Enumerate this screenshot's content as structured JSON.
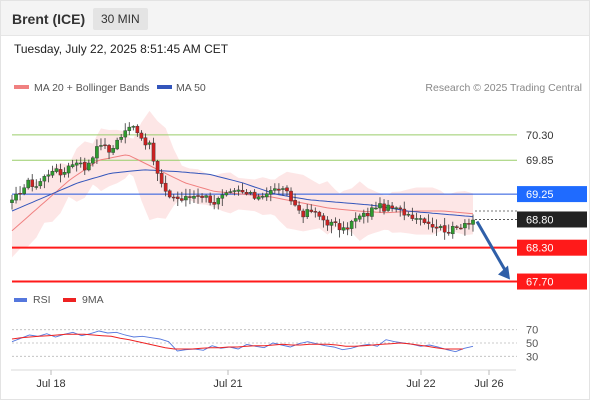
{
  "header": {
    "instrument": "Brent (ICE)",
    "timeframe": "30 MIN"
  },
  "datetime": "Tuesday, July 22, 2025 8:51:45 AM CET",
  "legend": {
    "ma20": "MA 20 + Bollinger Bands",
    "ma50": "MA 50",
    "rsi": "RSI",
    "rsi_ma": "9MA"
  },
  "credit": "Research © 2025 Trading Central",
  "colors": {
    "ma20": "#f08080",
    "bollinger_fill": "#fde3e3",
    "ma50": "#3355bb",
    "pivot_line": "#2255dd",
    "pivot_label": "#1f6bff",
    "resistance": "#9acd6a",
    "support": "#ff1a1a",
    "current_label": "#222222",
    "candle_up": "#2e9b2e",
    "candle_down": "#cc2222",
    "rsi": "#5577dd",
    "rsi_ma": "#ee2222",
    "arrow": "#2f5fa8"
  },
  "chart_data": [
    {
      "type": "candlestick",
      "title": "Brent (ICE)",
      "ylim": [
        67.55,
        70.9
      ],
      "x_ticks": [
        "Jul 18",
        "Jul 21",
        "Jul 22",
        "Jul 26"
      ],
      "levels": [
        {
          "value": 70.3,
          "label": "70.30",
          "kind": "resistance"
        },
        {
          "value": 69.85,
          "label": "69.85",
          "kind": "resistance"
        },
        {
          "value": 69.25,
          "label": "69.25",
          "kind": "pivot"
        },
        {
          "value": 68.8,
          "label": "68.80",
          "kind": "current"
        },
        {
          "value": 68.3,
          "label": "68.30",
          "kind": "support"
        },
        {
          "value": 67.7,
          "label": "67.70",
          "kind": "support"
        }
      ],
      "price_anchors": [
        69.1,
        69.3,
        69.45,
        69.4,
        69.55,
        69.7,
        69.6,
        69.75,
        69.85,
        69.7,
        69.95,
        70.15,
        70.0,
        70.2,
        70.35,
        70.5,
        70.25,
        70.1,
        69.6,
        69.25,
        69.2,
        69.15,
        69.2,
        69.25,
        69.2,
        69.1,
        69.2,
        69.25,
        69.3,
        69.25,
        69.2,
        69.25,
        69.3,
        69.35,
        69.25,
        69.05,
        68.9,
        68.95,
        68.85,
        68.75,
        68.7,
        68.6,
        68.75,
        68.85,
        68.9,
        69.05,
        69.0,
        69.0,
        68.95,
        68.9,
        68.85,
        68.8,
        68.7,
        68.65,
        68.6,
        68.65,
        68.75,
        68.8
      ],
      "ma20_anchors": [
        68.6,
        69.05,
        69.5,
        69.85,
        69.95,
        69.7,
        69.45,
        69.3,
        69.25,
        69.2,
        69.1,
        69.0,
        68.95,
        68.92,
        68.95,
        68.95,
        68.9
      ],
      "ma50_anchors": [
        68.95,
        69.2,
        69.45,
        69.62,
        69.68,
        69.65,
        69.6,
        69.45,
        69.25,
        69.15,
        69.1,
        69.05,
        68.95,
        68.9,
        68.85
      ],
      "projection": {
        "from": 68.8,
        "to": 67.7
      }
    },
    {
      "type": "line",
      "title": "RSI",
      "ylim": [
        20,
        80
      ],
      "y_ticks": [
        70,
        50,
        30
      ],
      "series": [
        {
          "name": "RSI",
          "values": [
            52,
            57,
            62,
            60,
            64,
            59,
            63,
            66,
            61,
            64,
            68,
            65,
            66,
            62,
            59,
            60,
            58,
            56,
            52,
            38,
            40,
            41,
            39,
            46,
            42,
            44,
            41,
            48,
            45,
            43,
            50,
            47,
            44,
            49,
            52,
            49,
            46,
            44,
            40,
            42,
            46,
            48,
            45,
            55,
            52,
            50,
            48,
            45,
            47,
            44,
            40,
            37,
            42,
            45
          ]
        },
        {
          "name": "9MA",
          "values": [
            56,
            58,
            59,
            60,
            61,
            62,
            63,
            63,
            63,
            62,
            61,
            60,
            57,
            55,
            52,
            49,
            46,
            43,
            41,
            41,
            41,
            42,
            43,
            43,
            44,
            44,
            45,
            46,
            46,
            47,
            48,
            47,
            47,
            48,
            48,
            48,
            47,
            45,
            45,
            46,
            47,
            48,
            49,
            50,
            49,
            47,
            45,
            43,
            41,
            41,
            41
          ]
        }
      ]
    }
  ]
}
